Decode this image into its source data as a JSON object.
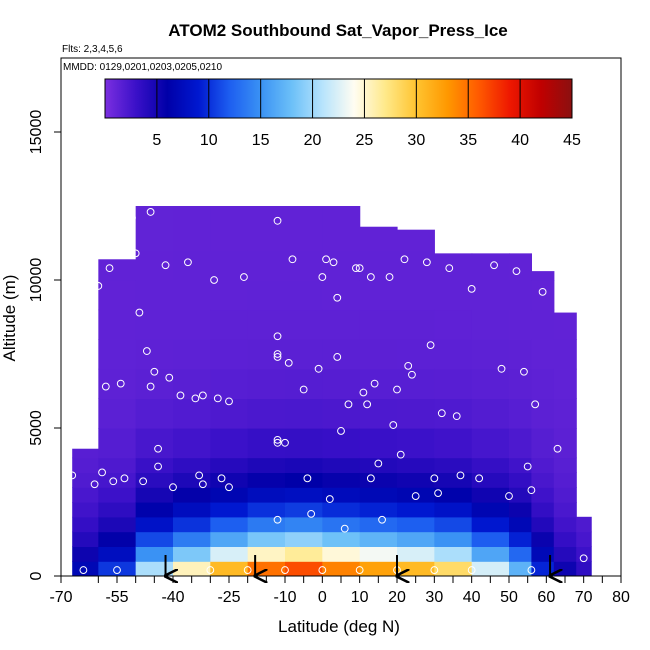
{
  "chart_data": {
    "type": "heatmap",
    "title": "ATOM2 Southbound Sat_Vapor_Press_Ice",
    "flights_text": "Flts: 2,3,4,5,6",
    "dates_text": "MMDD: 0129,0201,0203,0205,0210",
    "xlabel": "Latitude (deg N)",
    "ylabel": "Altitude (m)",
    "xlim": [
      -70,
      80
    ],
    "ylim": [
      0,
      17500
    ],
    "x_ticks": [
      -70,
      -55,
      -40,
      -25,
      -10,
      0,
      10,
      20,
      30,
      40,
      50,
      60,
      70,
      80
    ],
    "x_tick_labels": [
      "-70",
      "-55",
      "-40",
      "-25",
      "-10",
      "0",
      "10",
      "20",
      "30",
      "40",
      "50",
      "60",
      "70",
      "80"
    ],
    "x_minor_ticks": [
      -60,
      -50,
      -45,
      -35,
      -30,
      -20,
      -15,
      -5,
      5,
      15,
      25,
      35,
      45,
      55,
      65,
      75
    ],
    "y_ticks": [
      0,
      5000,
      10000,
      15000
    ],
    "y_tick_labels": [
      "0",
      "5000",
      "10000",
      "15000"
    ],
    "colorbar": {
      "min": 0,
      "max": 45,
      "ticks": [
        5,
        10,
        15,
        20,
        25,
        30,
        35,
        40,
        45
      ],
      "tick_labels": [
        "5",
        "10",
        "15",
        "20",
        "25",
        "30",
        "35",
        "40",
        "45"
      ],
      "colors": [
        "#7b2fe0",
        "#3a10c8",
        "#0000a8",
        "#0018d0",
        "#1d5ef0",
        "#3a92f4",
        "#6cc0f8",
        "#b8e4fc",
        "#fffdf2",
        "#ffe98a",
        "#ffc430",
        "#ff9800",
        "#ff5a00",
        "#ee1800",
        "#c00000",
        "#8b1010"
      ]
    },
    "lat_edges": [
      -67,
      -60,
      -50,
      -40,
      -30,
      -20,
      -10,
      0,
      10,
      20,
      30,
      40,
      50,
      56,
      62,
      68,
      72
    ],
    "alt_edges": [
      0,
      500,
      1000,
      1500,
      2000,
      2500,
      3000,
      3500,
      4000,
      5000,
      6000,
      7000,
      8000,
      9000,
      10000,
      11000,
      12500
    ],
    "surface_values": [
      8,
      12,
      24,
      30,
      36,
      41,
      43,
      40,
      38,
      36,
      33,
      26,
      20,
      11,
      6,
      4
    ],
    "top_altitude": [
      4300,
      10700,
      12500,
      12500,
      12500,
      12500,
      12500,
      12500,
      11800,
      11700,
      10900,
      10900,
      10900,
      10300,
      8900,
      2000
    ],
    "sample_points": [
      {
        "lat": -67,
        "alt": 3400
      },
      {
        "lat": -66,
        "alt": 5800
      },
      {
        "lat": -64,
        "alt": 200
      },
      {
        "lat": -61,
        "alt": 3100
      },
      {
        "lat": -60,
        "alt": 9800
      },
      {
        "lat": -59,
        "alt": 3500
      },
      {
        "lat": -58,
        "alt": 6400
      },
      {
        "lat": -57,
        "alt": 11700
      },
      {
        "lat": -57,
        "alt": 10400
      },
      {
        "lat": -56,
        "alt": 3200
      },
      {
        "lat": -55,
        "alt": 200
      },
      {
        "lat": -54,
        "alt": 6500
      },
      {
        "lat": -53,
        "alt": 3300
      },
      {
        "lat": -51,
        "alt": 12100
      },
      {
        "lat": -50,
        "alt": 10900
      },
      {
        "lat": -49,
        "alt": 8900
      },
      {
        "lat": -48,
        "alt": 3200
      },
      {
        "lat": -47,
        "alt": 7600
      },
      {
        "lat": -46,
        "alt": 12300
      },
      {
        "lat": -46,
        "alt": 6400
      },
      {
        "lat": -45,
        "alt": 6900
      },
      {
        "lat": -44,
        "alt": 4300
      },
      {
        "lat": -44,
        "alt": 3700
      },
      {
        "lat": -42,
        "alt": 10500
      },
      {
        "lat": -41,
        "alt": 6700
      },
      {
        "lat": -40,
        "alt": 3000
      },
      {
        "lat": -38,
        "alt": 6100
      },
      {
        "lat": -36,
        "alt": 10600
      },
      {
        "lat": -34,
        "alt": 6000
      },
      {
        "lat": -33,
        "alt": 3400
      },
      {
        "lat": -32,
        "alt": 3100
      },
      {
        "lat": -32,
        "alt": 6100
      },
      {
        "lat": -29,
        "alt": 10000
      },
      {
        "lat": -28,
        "alt": 6000
      },
      {
        "lat": -27,
        "alt": 3300
      },
      {
        "lat": -25,
        "alt": 3000
      },
      {
        "lat": -25,
        "alt": 5900
      },
      {
        "lat": -21,
        "alt": 10100
      },
      {
        "lat": -12,
        "alt": 12000
      },
      {
        "lat": -12,
        "alt": 8100
      },
      {
        "lat": -12,
        "alt": 7400
      },
      {
        "lat": -12,
        "alt": 7500
      },
      {
        "lat": -12,
        "alt": 4600
      },
      {
        "lat": -12,
        "alt": 4500
      },
      {
        "lat": -12,
        "alt": 1900
      },
      {
        "lat": -10,
        "alt": 4500
      },
      {
        "lat": -9,
        "alt": 7200
      },
      {
        "lat": -8,
        "alt": 10700
      },
      {
        "lat": -5,
        "alt": 6300
      },
      {
        "lat": -4,
        "alt": 3300
      },
      {
        "lat": -3,
        "alt": 2100
      },
      {
        "lat": -1,
        "alt": 7000
      },
      {
        "lat": 0,
        "alt": 10100
      },
      {
        "lat": 1,
        "alt": 10700
      },
      {
        "lat": 2,
        "alt": 2600
      },
      {
        "lat": 3,
        "alt": 10600
      },
      {
        "lat": 4,
        "alt": 9400
      },
      {
        "lat": 4,
        "alt": 7400
      },
      {
        "lat": 5,
        "alt": 4900
      },
      {
        "lat": 6,
        "alt": 1600
      },
      {
        "lat": 7,
        "alt": 5800
      },
      {
        "lat": 9,
        "alt": 10400
      },
      {
        "lat": 10,
        "alt": 10400
      },
      {
        "lat": 11,
        "alt": 6200
      },
      {
        "lat": 12,
        "alt": 5800
      },
      {
        "lat": 13,
        "alt": 10100
      },
      {
        "lat": 13,
        "alt": 3300
      },
      {
        "lat": 14,
        "alt": 6500
      },
      {
        "lat": 15,
        "alt": 3800
      },
      {
        "lat": 16,
        "alt": 1900
      },
      {
        "lat": 18,
        "alt": 10100
      },
      {
        "lat": 19,
        "alt": 5100
      },
      {
        "lat": 20,
        "alt": 6300
      },
      {
        "lat": 21,
        "alt": 4100
      },
      {
        "lat": 22,
        "alt": 10700
      },
      {
        "lat": 23,
        "alt": 7100
      },
      {
        "lat": 24,
        "alt": 6800
      },
      {
        "lat": 25,
        "alt": 2700
      },
      {
        "lat": 28,
        "alt": 10600
      },
      {
        "lat": 29,
        "alt": 7800
      },
      {
        "lat": 30,
        "alt": 3300
      },
      {
        "lat": 31,
        "alt": 2800
      },
      {
        "lat": 32,
        "alt": 5500
      },
      {
        "lat": 34,
        "alt": 10400
      },
      {
        "lat": 36,
        "alt": 5400
      },
      {
        "lat": 37,
        "alt": 3400
      },
      {
        "lat": 40,
        "alt": 9700
      },
      {
        "lat": 42,
        "alt": 3300
      },
      {
        "lat": 46,
        "alt": 10500
      },
      {
        "lat": 48,
        "alt": 7000
      },
      {
        "lat": 50,
        "alt": 2700
      },
      {
        "lat": 52,
        "alt": 10300
      },
      {
        "lat": 54,
        "alt": 6900
      },
      {
        "lat": 55,
        "alt": 3700
      },
      {
        "lat": 56,
        "alt": 2900
      },
      {
        "lat": 56,
        "alt": 200
      },
      {
        "lat": 57,
        "alt": 5800
      },
      {
        "lat": 59,
        "alt": 9600
      },
      {
        "lat": 63,
        "alt": 4300
      },
      {
        "lat": 70,
        "alt": 600
      },
      {
        "lat": -30,
        "alt": 200
      },
      {
        "lat": -20,
        "alt": 200
      },
      {
        "lat": -10,
        "alt": 200
      },
      {
        "lat": 0,
        "alt": 200
      },
      {
        "lat": 10,
        "alt": 200
      },
      {
        "lat": 20,
        "alt": 200
      },
      {
        "lat": 30,
        "alt": 200
      },
      {
        "lat": 40,
        "alt": 200
      }
    ],
    "arrow_latitudes": [
      -42,
      -18,
      20,
      61
    ]
  }
}
